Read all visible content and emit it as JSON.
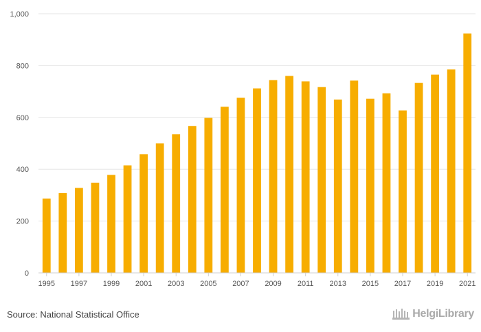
{
  "chart_data": {
    "type": "bar",
    "title": "",
    "xlabel": "",
    "ylabel": "",
    "categories": [
      "1995",
      "1996",
      "1997",
      "1998",
      "1999",
      "2000",
      "2001",
      "2002",
      "2003",
      "2004",
      "2005",
      "2006",
      "2007",
      "2008",
      "2009",
      "2010",
      "2011",
      "2012",
      "2013",
      "2014",
      "2015",
      "2016",
      "2017",
      "2018",
      "2019",
      "2020",
      "2021"
    ],
    "values": [
      287,
      308,
      328,
      348,
      378,
      415,
      458,
      500,
      535,
      567,
      598,
      641,
      676,
      712,
      744,
      760,
      739,
      717,
      669,
      742,
      672,
      693,
      627,
      733,
      765,
      785,
      924
    ],
    "x_tick_labels": [
      "1995",
      "1997",
      "1999",
      "2001",
      "2003",
      "2005",
      "2007",
      "2009",
      "2011",
      "2013",
      "2015",
      "2017",
      "2019",
      "2021"
    ],
    "y_ticks": [
      0,
      200,
      400,
      600,
      800,
      1000
    ],
    "y_tick_labels": [
      "0",
      "200",
      "400",
      "600",
      "800",
      "1,000"
    ],
    "ylim": [
      0,
      1000
    ],
    "grid": true,
    "bar_color": "#f7ad00",
    "grid_color": "#e6e6e6"
  },
  "footer": {
    "source": "Source: National Statistical Office",
    "brand": "HelgiLibrary"
  }
}
